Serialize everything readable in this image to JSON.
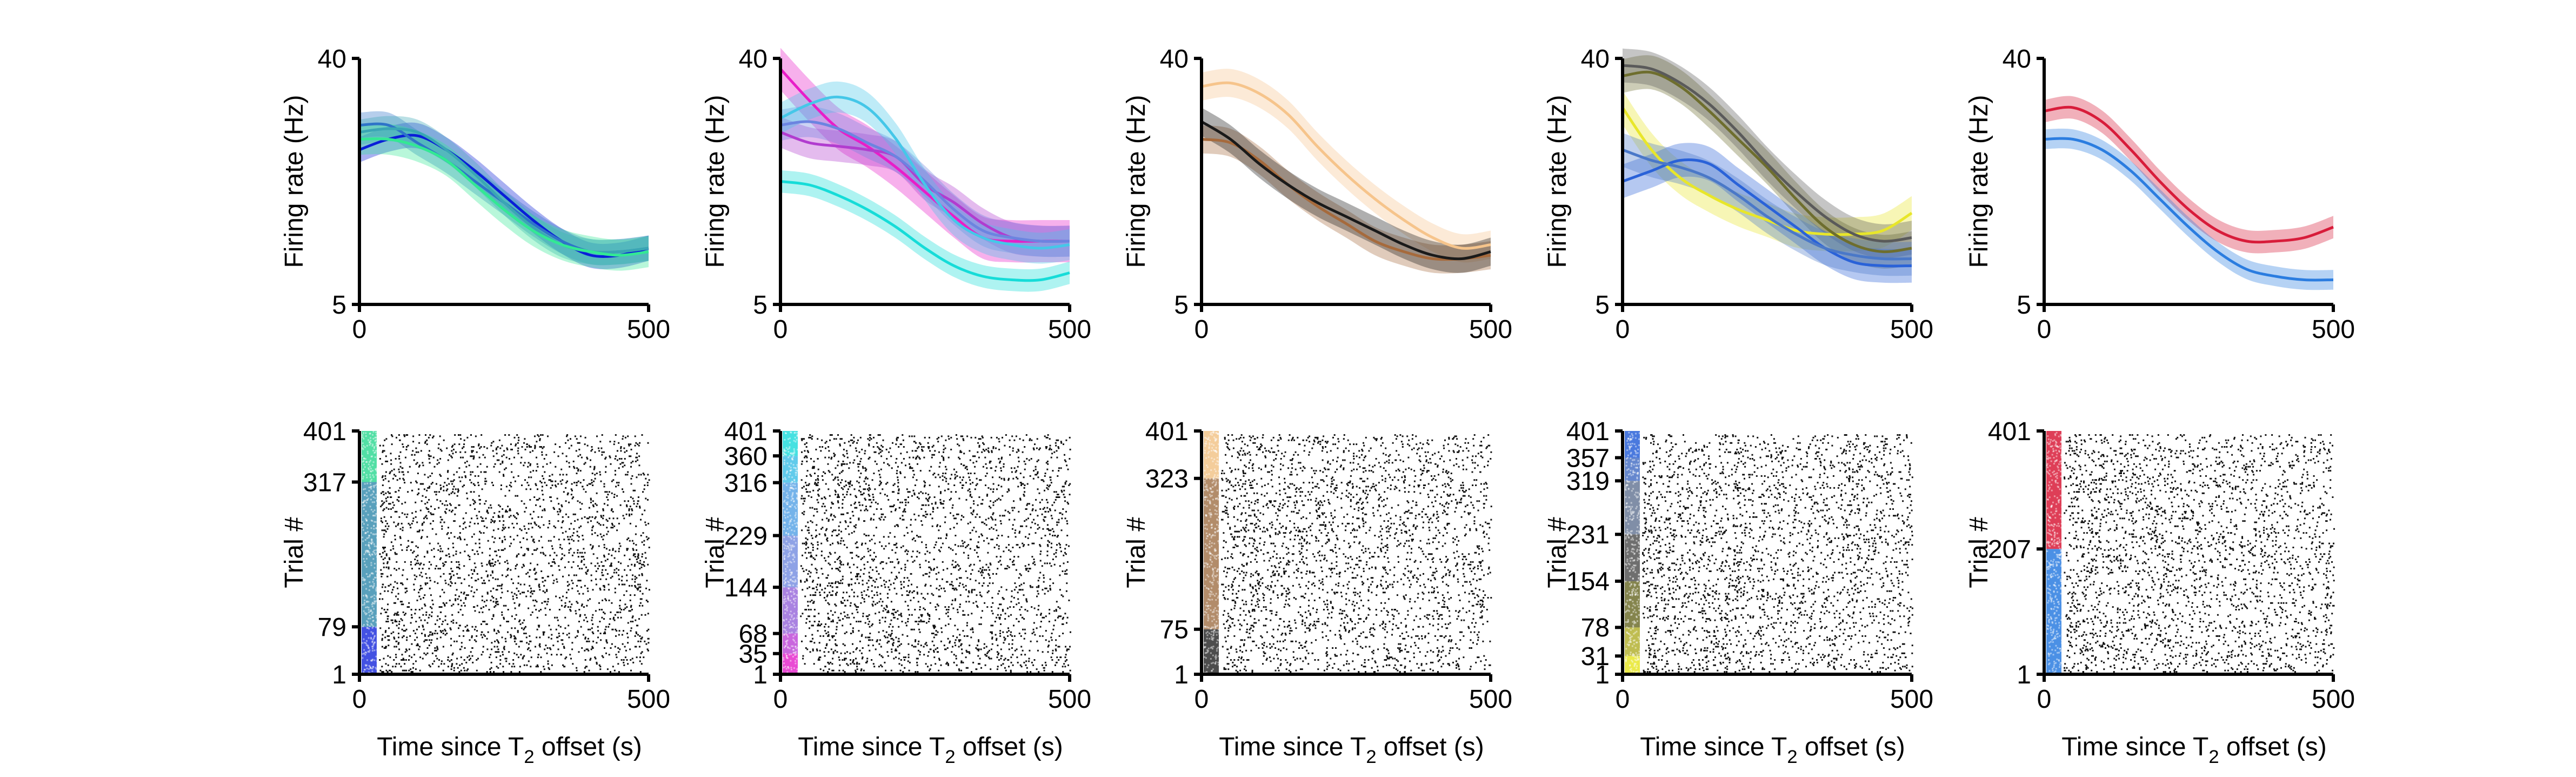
{
  "figure": {
    "rate_ylabel": "Firing rate (Hz)",
    "raster_ylabel": "Trial #",
    "raster_xlabel_pre": "Time since T",
    "raster_xlabel_sub": "2",
    "raster_xlabel_post": " offset (s)"
  },
  "chart_data": [
    {
      "type": "line",
      "panel": 1,
      "x": [
        0,
        50,
        100,
        150,
        200,
        250,
        300,
        350,
        400,
        450,
        500
      ],
      "xlim": [
        0,
        500
      ],
      "ylim": [
        5,
        40
      ],
      "yticks": [
        5,
        40
      ],
      "xticks": [
        0,
        500
      ],
      "xlabel": "",
      "ylabel": "Firing rate (Hz)",
      "series": [
        {
          "color": "#0a1ed8",
          "band": 1.8,
          "values": [
            27.0,
            28.5,
            29.0,
            27.0,
            24.0,
            20.5,
            17.0,
            14.0,
            12.0,
            12.0,
            13.0
          ]
        },
        {
          "color": "#2f74c8",
          "band": 1.8,
          "values": [
            30.5,
            30.5,
            28.0,
            25.5,
            22.5,
            19.5,
            16.5,
            14.0,
            12.5,
            12.5,
            13.0
          ]
        },
        {
          "color": "#3aa6b4",
          "band": 1.8,
          "values": [
            29.5,
            30.0,
            29.5,
            27.0,
            23.5,
            19.5,
            16.0,
            13.5,
            12.5,
            12.5,
            13.0
          ]
        },
        {
          "color": "#33e894",
          "band": 2.2,
          "values": [
            28.5,
            28.5,
            27.5,
            25.5,
            22.0,
            18.5,
            15.5,
            13.5,
            12.5,
            12.0,
            12.5
          ]
        }
      ]
    },
    {
      "type": "line",
      "panel": 2,
      "x": [
        0,
        50,
        100,
        150,
        200,
        250,
        300,
        350,
        400,
        450,
        500
      ],
      "xlim": [
        0,
        500
      ],
      "ylim": [
        5,
        40
      ],
      "yticks": [
        5,
        40
      ],
      "xticks": [
        0,
        500
      ],
      "xlabel": "",
      "ylabel": "Firing rate (Hz)",
      "series": [
        {
          "color": "#e81ec8",
          "band": 3.0,
          "values": [
            38.5,
            34.0,
            30.0,
            27.5,
            24.5,
            21.0,
            17.5,
            14.5,
            14.0,
            14.0,
            14.0
          ]
        },
        {
          "color": "#b13ccf",
          "band": 2.2,
          "values": [
            29.5,
            28.0,
            27.5,
            27.0,
            26.0,
            22.0,
            19.5,
            16.5,
            14.5,
            14.0,
            14.0
          ]
        },
        {
          "color": "#6c84e0",
          "band": 2.2,
          "values": [
            30.5,
            31.0,
            30.0,
            28.0,
            26.0,
            22.5,
            18.5,
            15.5,
            14.5,
            14.0,
            14.0
          ]
        },
        {
          "color": "#45c7e8",
          "band": 2.2,
          "values": [
            31.5,
            33.5,
            34.5,
            33.0,
            28.5,
            22.0,
            17.0,
            14.5,
            13.5,
            13.0,
            13.5
          ]
        },
        {
          "color": "#16dcd8",
          "band": 1.6,
          "values": [
            22.5,
            22.0,
            20.5,
            18.5,
            16.0,
            13.0,
            10.5,
            9.0,
            8.5,
            8.5,
            9.5
          ]
        }
      ]
    },
    {
      "type": "line",
      "panel": 3,
      "x": [
        0,
        50,
        100,
        150,
        200,
        250,
        300,
        350,
        400,
        450,
        500
      ],
      "xlim": [
        0,
        500
      ],
      "ylim": [
        5,
        40
      ],
      "yticks": [
        5,
        40
      ],
      "xticks": [
        0,
        500
      ],
      "xlabel": "",
      "ylabel": "Firing rate (Hz)",
      "series": [
        {
          "color": "#f6c48b",
          "band": 2.0,
          "values": [
            36.0,
            36.5,
            35.0,
            32.0,
            27.5,
            23.5,
            20.0,
            17.0,
            14.5,
            13.0,
            13.5
          ]
        },
        {
          "color": "#a66a3c",
          "band": 2.0,
          "values": [
            28.5,
            28.0,
            25.5,
            22.0,
            19.0,
            16.5,
            14.0,
            12.5,
            11.5,
            11.5,
            12.0
          ]
        },
        {
          "color": "#1a1a1a",
          "band": 2.0,
          "values": [
            31.0,
            28.5,
            25.0,
            22.0,
            19.5,
            17.5,
            15.5,
            13.5,
            12.0,
            11.5,
            12.5
          ]
        }
      ]
    },
    {
      "type": "line",
      "panel": 4,
      "x": [
        0,
        50,
        100,
        150,
        200,
        250,
        300,
        350,
        400,
        450,
        500
      ],
      "xlim": [
        0,
        500
      ],
      "ylim": [
        5,
        40
      ],
      "yticks": [
        5,
        40
      ],
      "xticks": [
        0,
        500
      ],
      "xlabel": "",
      "ylabel": "Firing rate (Hz)",
      "series": [
        {
          "color": "#e8e62a",
          "band": 2.4,
          "values": [
            33.0,
            27.0,
            23.0,
            20.5,
            18.5,
            17.0,
            15.5,
            15.0,
            15.0,
            15.5,
            18.0
          ]
        },
        {
          "color": "#6e6e2e",
          "band": 2.4,
          "values": [
            37.5,
            38.0,
            36.0,
            32.5,
            28.5,
            24.5,
            20.0,
            16.0,
            13.5,
            12.5,
            13.0
          ]
        },
        {
          "color": "#5a5a5a",
          "band": 2.4,
          "values": [
            39.0,
            38.5,
            36.5,
            33.5,
            29.5,
            25.0,
            21.0,
            17.5,
            15.0,
            14.0,
            14.5
          ]
        },
        {
          "color": "#2a62d8",
          "band": 2.4,
          "values": [
            22.5,
            24.0,
            25.5,
            25.0,
            22.0,
            19.0,
            16.0,
            13.0,
            11.0,
            10.5,
            10.5
          ]
        },
        {
          "color": "#4a78c8",
          "band": 2.4,
          "values": [
            27.0,
            25.5,
            24.5,
            23.0,
            20.5,
            17.5,
            15.0,
            13.0,
            12.0,
            11.5,
            11.5
          ]
        }
      ]
    },
    {
      "type": "line",
      "panel": 5,
      "x": [
        0,
        50,
        100,
        150,
        200,
        250,
        300,
        350,
        400,
        450,
        500
      ],
      "xlim": [
        0,
        500
      ],
      "ylim": [
        5,
        40
      ],
      "yticks": [
        5,
        40
      ],
      "xticks": [
        0,
        500
      ],
      "xlabel": "",
      "ylabel": "Firing rate (Hz)",
      "series": [
        {
          "color": "#d81c3a",
          "band": 1.6,
          "values": [
            32.5,
            33.0,
            31.0,
            27.0,
            22.5,
            18.5,
            15.5,
            14.0,
            14.0,
            14.5,
            16.0
          ]
        },
        {
          "color": "#2b7de0",
          "band": 1.4,
          "values": [
            28.5,
            28.5,
            27.0,
            24.0,
            20.0,
            16.0,
            12.5,
            10.0,
            9.0,
            8.5,
            8.5
          ]
        }
      ]
    },
    {
      "type": "scatter",
      "panel": 6,
      "subtype": "raster",
      "xlim": [
        0,
        500
      ],
      "ylim": [
        1,
        401
      ],
      "xticks": [
        0,
        500
      ],
      "yticks": [
        1,
        79,
        317,
        401
      ],
      "xlabel": "Time since T2 offset (s)",
      "ylabel": "Trial #",
      "condition_bands": [
        {
          "from": 1,
          "to": 79,
          "color": "#2233dd"
        },
        {
          "from": 79,
          "to": 317,
          "color": "#3c8fb0"
        },
        {
          "from": 317,
          "to": 401,
          "color": "#34d995"
        }
      ]
    },
    {
      "type": "scatter",
      "panel": 7,
      "subtype": "raster",
      "xlim": [
        0,
        500
      ],
      "ylim": [
        1,
        401
      ],
      "xticks": [
        0,
        500
      ],
      "yticks": [
        1,
        35,
        68,
        144,
        229,
        316,
        360,
        401
      ],
      "xlabel": "Time since T2 offset (s)",
      "ylabel": "Trial #",
      "condition_bands": [
        {
          "from": 1,
          "to": 35,
          "color": "#e52ccc"
        },
        {
          "from": 35,
          "to": 68,
          "color": "#c04cd8"
        },
        {
          "from": 68,
          "to": 144,
          "color": "#9a6cdc"
        },
        {
          "from": 144,
          "to": 229,
          "color": "#7a92e2"
        },
        {
          "from": 229,
          "to": 316,
          "color": "#5ca6e6"
        },
        {
          "from": 316,
          "to": 360,
          "color": "#45c2e8"
        },
        {
          "from": 360,
          "to": 401,
          "color": "#26dcdc"
        }
      ]
    },
    {
      "type": "scatter",
      "panel": 8,
      "subtype": "raster",
      "xlim": [
        0,
        500
      ],
      "ylim": [
        1,
        401
      ],
      "xticks": [
        0,
        500
      ],
      "yticks": [
        1,
        75,
        323,
        401
      ],
      "xlabel": "Time since T2 offset (s)",
      "ylabel": "Trial #",
      "condition_bands": [
        {
          "from": 1,
          "to": 75,
          "color": "#2e2e2e"
        },
        {
          "from": 75,
          "to": 323,
          "color": "#a57850"
        },
        {
          "from": 323,
          "to": 401,
          "color": "#f2c48a"
        }
      ]
    },
    {
      "type": "scatter",
      "panel": 9,
      "subtype": "raster",
      "xlim": [
        0,
        500
      ],
      "ylim": [
        1,
        401
      ],
      "xticks": [
        0,
        500
      ],
      "yticks": [
        1,
        31,
        78,
        154,
        231,
        319,
        357,
        401
      ],
      "xlabel": "Time since T2 offset (s)",
      "ylabel": "Trial #",
      "condition_bands": [
        {
          "from": 1,
          "to": 31,
          "color": "#e8e62a"
        },
        {
          "from": 31,
          "to": 78,
          "color": "#b4b232"
        },
        {
          "from": 78,
          "to": 154,
          "color": "#6e6e2e"
        },
        {
          "from": 154,
          "to": 231,
          "color": "#555555"
        },
        {
          "from": 231,
          "to": 319,
          "color": "#6a7a98"
        },
        {
          "from": 319,
          "to": 357,
          "color": "#4a72c6"
        },
        {
          "from": 357,
          "to": 401,
          "color": "#2a62d8"
        }
      ]
    },
    {
      "type": "scatter",
      "panel": 10,
      "subtype": "raster",
      "xlim": [
        0,
        500
      ],
      "ylim": [
        1,
        401
      ],
      "xticks": [
        0,
        500
      ],
      "yticks": [
        1,
        207,
        401
      ],
      "xlabel": "Time since T2 offset (s)",
      "ylabel": "Trial #",
      "condition_bands": [
        {
          "from": 1,
          "to": 207,
          "color": "#2b7de0"
        },
        {
          "from": 207,
          "to": 401,
          "color": "#d81c3a"
        }
      ]
    }
  ]
}
